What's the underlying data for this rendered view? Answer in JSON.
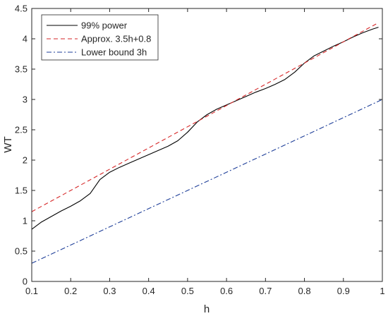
{
  "chart_data": {
    "type": "line",
    "title": "",
    "xlabel": "h",
    "ylabel": "WT",
    "xlim": [
      0.1,
      1
    ],
    "ylim": [
      0,
      4.5
    ],
    "x_ticks": [
      0.1,
      0.2,
      0.3,
      0.4,
      0.5,
      0.6,
      0.7,
      0.8,
      0.9,
      1
    ],
    "x_tick_labels": [
      "0.1",
      "0.2",
      "0.3",
      "0.4",
      "0.5",
      "0.6",
      "0.7",
      "0.8",
      "0.9",
      "1"
    ],
    "y_ticks": [
      0,
      0.5,
      1,
      1.5,
      2,
      2.5,
      3,
      3.5,
      4,
      4.5
    ],
    "y_tick_labels": [
      "0",
      "0.5",
      "1",
      "1.5",
      "2",
      "2.5",
      "3",
      "3.5",
      "4",
      "4.5"
    ],
    "grid": false,
    "legend_position": "top-left",
    "series": [
      {
        "name": "99% power",
        "color": "#000000",
        "style": "solid",
        "x": [
          0.1,
          0.125,
          0.15,
          0.175,
          0.2,
          0.225,
          0.25,
          0.275,
          0.3,
          0.325,
          0.35,
          0.375,
          0.4,
          0.425,
          0.45,
          0.475,
          0.5,
          0.525,
          0.55,
          0.575,
          0.6,
          0.625,
          0.65,
          0.675,
          0.7,
          0.725,
          0.75,
          0.775,
          0.8,
          0.825,
          0.85,
          0.875,
          0.9,
          0.925,
          0.95,
          0.975,
          0.99
        ],
        "y": [
          0.86,
          0.98,
          1.07,
          1.16,
          1.24,
          1.33,
          1.45,
          1.68,
          1.8,
          1.88,
          1.95,
          2.02,
          2.09,
          2.16,
          2.23,
          2.32,
          2.46,
          2.63,
          2.75,
          2.84,
          2.91,
          2.98,
          3.05,
          3.12,
          3.18,
          3.25,
          3.33,
          3.45,
          3.6,
          3.72,
          3.8,
          3.88,
          3.95,
          4.03,
          4.1,
          4.16,
          4.19
        ]
      },
      {
        "name": "Approx. 3.5h+0.8",
        "color": "#d62728",
        "style": "dashed",
        "x": [
          0.1,
          0.99
        ],
        "y": [
          1.15,
          4.265
        ]
      },
      {
        "name": "Lower bound 3h",
        "color": "#1f3f99",
        "style": "dashdot",
        "x": [
          0.1,
          1
        ],
        "y": [
          0.3,
          3.0
        ]
      }
    ]
  }
}
